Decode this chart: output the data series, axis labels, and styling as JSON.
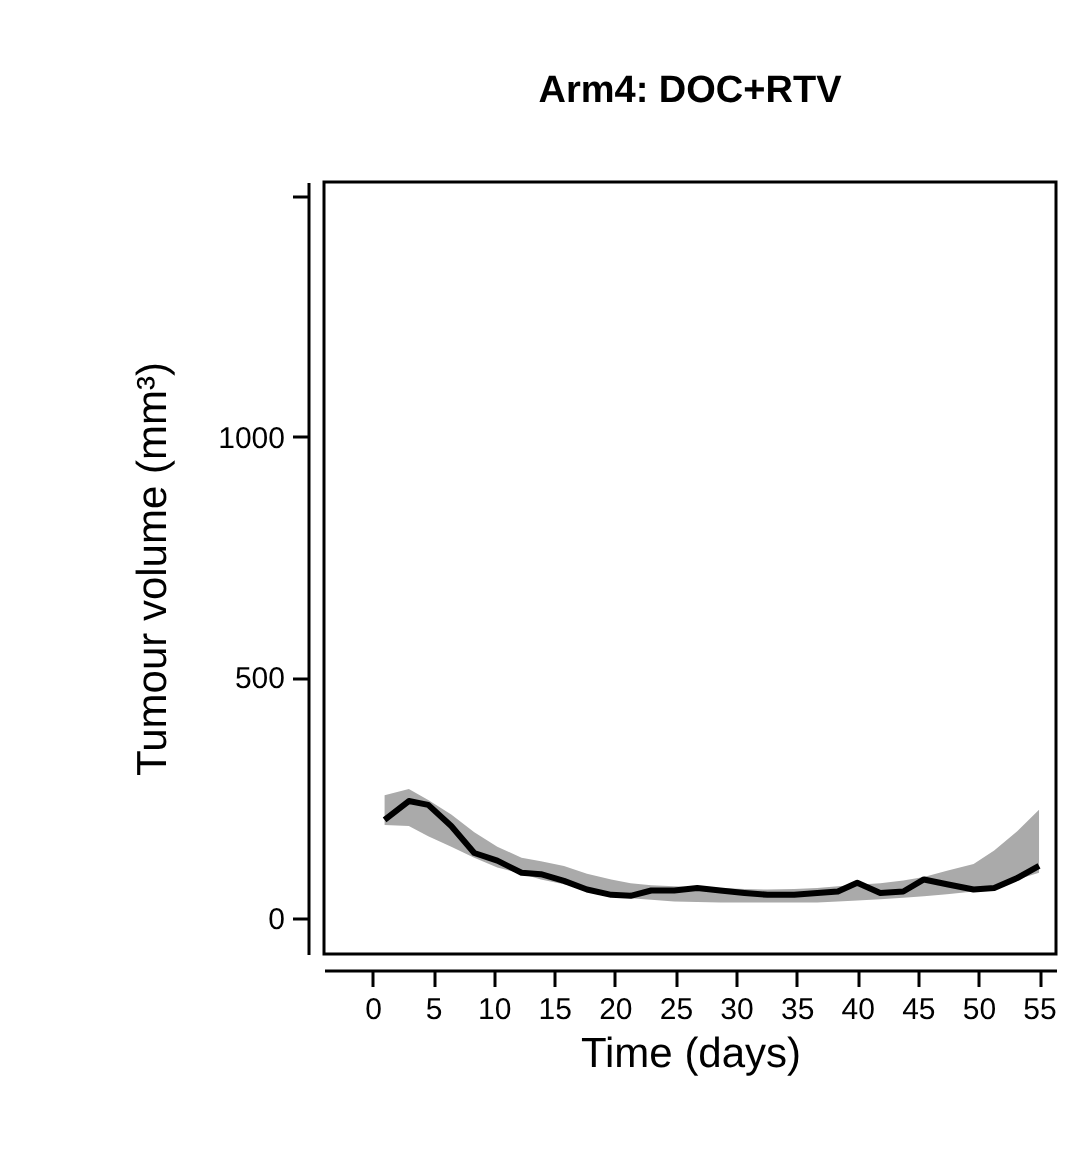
{
  "chart_data": {
    "type": "line",
    "title": "Arm4: DOC+RTV",
    "xlabel": "Time (days)",
    "ylabel": "Tumour volume (mm³)",
    "x": [
      1,
      3,
      4.6,
      6.5,
      8.4,
      10.3,
      12.3,
      13.9,
      15.8,
      17.7,
      19.7,
      21.3,
      23,
      24.9,
      26.8,
      28.7,
      30.7,
      32.6,
      34.8,
      36.7,
      38.4,
      40,
      41.9,
      43.8,
      45.5,
      47.4,
      49.6,
      51.3,
      53.2,
      55
    ],
    "series": [
      {
        "color": "#000000",
        "values": [
          204,
          243,
          235,
          191,
          135,
          119,
          94,
          91,
          77,
          59,
          48,
          46,
          57,
          57,
          62,
          57,
          52,
          48,
          48,
          52,
          55,
          73,
          52,
          55,
          80,
          70,
          59,
          62,
          83,
          108
        ],
        "upper": [
          255,
          268,
          245,
          215,
          178,
          148,
          125,
          118,
          108,
          92,
          80,
          72,
          68,
          66,
          64,
          62,
          60,
          59,
          60,
          62,
          66,
          69,
          72,
          78,
          85,
          98,
          112,
          140,
          180,
          225
        ],
        "lower": [
          193,
          191,
          170,
          148,
          125,
          105,
          92,
          80,
          70,
          60,
          48,
          41,
          38,
          34,
          33,
          32,
          32,
          32,
          32,
          32,
          34,
          36,
          39,
          42,
          45,
          49,
          55,
          68,
          80,
          94
        ]
      }
    ],
    "xlim": [
      -4,
      56.4
    ],
    "ylim": [
      -75,
      1530
    ],
    "xticks": [
      0,
      5,
      10,
      15,
      20,
      25,
      30,
      35,
      40,
      45,
      50,
      55
    ],
    "yticks": [
      0,
      500,
      1000,
      {
        "value": 1500,
        "label": null
      }
    ],
    "grid": false,
    "marker": "none",
    "line_style": "solid"
  }
}
